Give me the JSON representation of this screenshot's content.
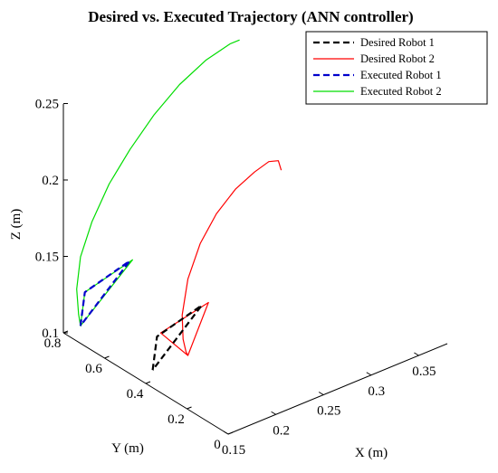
{
  "chart_data": {
    "type": "line",
    "title": "Desired vs. Executed Trajectory (ANN controller)",
    "xlabel": "X (m)",
    "ylabel": "Y (m)",
    "zlabel": "Z (m)",
    "xlim": [
      0.15,
      0.38
    ],
    "ylim": [
      0,
      0.8
    ],
    "zlim": [
      0.1,
      0.25
    ],
    "x_ticks": [
      "0.15",
      "0.2",
      "0.25",
      "0.3",
      "0.35"
    ],
    "y_ticks": [
      "0",
      "0.2",
      "0.4",
      "0.6",
      "0.8"
    ],
    "z_ticks": [
      "0.1",
      "0.15",
      "0.2",
      "0.25"
    ],
    "grid": false,
    "legend_position": "top-right",
    "series": [
      {
        "name": "Desired Robot 1",
        "color": "#000000",
        "dash": true,
        "points": [
          [
            0.168,
            0.45,
            0.1
          ],
          [
            0.205,
            0.6,
            0.1
          ],
          [
            0.265,
            0.66,
            0.1
          ],
          [
            0.168,
            0.45,
            0.1
          ]
        ]
      },
      {
        "name": "Desired Robot 2",
        "color": "#ff0000",
        "dash": false,
        "points": [
          [
            0.205,
            0.45,
            0.1
          ],
          [
            0.211,
            0.61,
            0.1
          ],
          [
            0.272,
            0.66,
            0.1
          ],
          [
            0.205,
            0.45,
            0.1
          ],
          [
            0.203,
            0.45,
            0.103
          ],
          [
            0.2,
            0.45,
            0.112
          ],
          [
            0.199,
            0.45,
            0.128
          ],
          [
            0.205,
            0.45,
            0.15
          ],
          [
            0.218,
            0.45,
            0.17
          ],
          [
            0.235,
            0.45,
            0.185
          ],
          [
            0.255,
            0.45,
            0.196
          ],
          [
            0.275,
            0.45,
            0.202
          ],
          [
            0.29,
            0.45,
            0.205
          ],
          [
            0.3,
            0.45,
            0.203
          ],
          [
            0.303,
            0.45,
            0.196
          ]
        ]
      },
      {
        "name": "Executed Robot 1",
        "color": "#0000cc",
        "dash": true,
        "points": [
          [
            0.168,
            0.8,
            0.1
          ],
          [
            0.205,
            0.95,
            0.1
          ],
          [
            0.265,
            1.01,
            0.1
          ],
          [
            0.168,
            0.8,
            0.1
          ]
        ]
      },
      {
        "name": "Executed Robot 2",
        "color": "#00dd00",
        "dash": false,
        "points": [
          [
            0.168,
            0.8,
            0.1
          ],
          [
            0.205,
            0.95,
            0.1
          ],
          [
            0.268,
            1.01,
            0.1
          ],
          [
            0.168,
            0.8,
            0.1
          ],
          [
            0.166,
            0.8,
            0.108
          ],
          [
            0.164,
            0.8,
            0.125
          ],
          [
            0.168,
            0.8,
            0.145
          ],
          [
            0.18,
            0.8,
            0.165
          ],
          [
            0.198,
            0.8,
            0.185
          ],
          [
            0.22,
            0.8,
            0.202
          ],
          [
            0.245,
            0.8,
            0.218
          ],
          [
            0.272,
            0.8,
            0.231
          ],
          [
            0.3,
            0.8,
            0.24
          ],
          [
            0.325,
            0.8,
            0.244
          ],
          [
            0.335,
            0.8,
            0.244
          ]
        ]
      }
    ]
  }
}
